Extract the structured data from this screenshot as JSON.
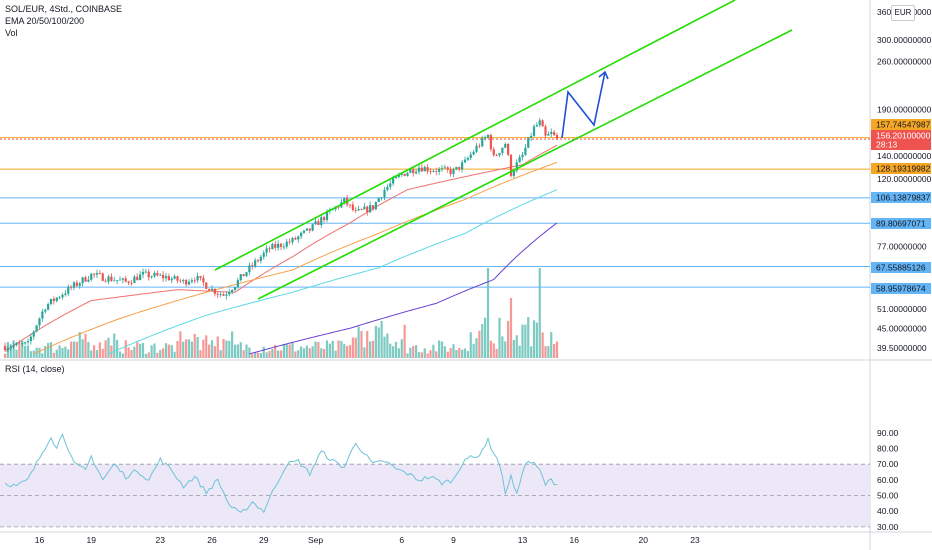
{
  "header": {
    "title": "SOL/EUR, 4Std., COINBASE",
    "indicators": "EMA 20/50/100/200",
    "volume_label": "Vol",
    "currency": "EUR",
    "rsi_label": "RSI (14, close)"
  },
  "colors": {
    "up": "#26a69a",
    "down": "#ef5350",
    "channel": "#22dd00",
    "arrow": "#1e4fd8",
    "ema20": "#f07070",
    "ema50": "#f5a04a",
    "ema100": "#5cd9e6",
    "ema200": "#6a3fd1",
    "rsi": "#6fc3d6",
    "rsi_band": "#ece8f8",
    "hline_blue": "#64b5f6",
    "hline_orange": "#f5a623"
  },
  "chart_data": {
    "type": "candlestick",
    "symbol": "SOL/EUR",
    "interval": "4Std.",
    "exchange": "COINBASE",
    "price_scale": "log",
    "price_range": [
      37,
      380
    ],
    "y_ticks": [
      "360.00000000",
      "300.00000000",
      "260.00000000",
      "190.00000000",
      "140.00000000",
      "120.00000000",
      "77.00000000",
      "51.00000000",
      "45.00000000",
      "39.50000000"
    ],
    "price_tags": [
      {
        "label": "157.74547987",
        "color": "#f5a623",
        "text": "#131722"
      },
      {
        "label": "156.20100000",
        "color": "#ef5350",
        "text": "#ffffff"
      },
      {
        "label": "28:13",
        "color": "#ef5350",
        "text": "#ffffff"
      },
      {
        "label": "128.19319982",
        "color": "#f5a623",
        "text": "#131722"
      },
      {
        "label": "106.13879837",
        "color": "#64b5f6",
        "text": "#131722"
      },
      {
        "label": "89.80697071",
        "color": "#64b5f6",
        "text": "#131722"
      },
      {
        "label": "67.55885126",
        "color": "#64b5f6",
        "text": "#131722"
      },
      {
        "label": "58.95978674",
        "color": "#64b5f6",
        "text": "#131722"
      }
    ],
    "horizontal_levels": [
      {
        "value": 157.75,
        "color": "#f5a623"
      },
      {
        "value": 156.2,
        "color": "#ef5350"
      },
      {
        "value": 128.19,
        "color": "#f5a623"
      },
      {
        "value": 106.14,
        "color": "#64b5f6"
      },
      {
        "value": 89.81,
        "color": "#64b5f6"
      },
      {
        "value": 67.56,
        "color": "#64b5f6"
      },
      {
        "value": 58.96,
        "color": "#64b5f6"
      }
    ],
    "x_labels": [
      "16",
      "19",
      "23",
      "26",
      "29",
      "Sep",
      "6",
      "9",
      "13",
      "16",
      "20",
      "23"
    ],
    "x_label_days": [
      16,
      19,
      23,
      26,
      29,
      32,
      37,
      40,
      44,
      47,
      51,
      54
    ],
    "start_day": 14,
    "bars_per_day": 6,
    "anchors": [
      [
        0,
        40
      ],
      [
        8,
        40.5
      ],
      [
        14,
        52
      ],
      [
        22,
        58
      ],
      [
        30,
        64
      ],
      [
        34,
        63
      ],
      [
        42,
        61
      ],
      [
        48,
        64
      ],
      [
        56,
        63
      ],
      [
        62,
        61
      ],
      [
        66,
        63
      ],
      [
        72,
        58
      ],
      [
        76,
        56
      ],
      [
        80,
        60
      ],
      [
        86,
        68
      ],
      [
        92,
        76
      ],
      [
        100,
        80
      ],
      [
        106,
        86
      ],
      [
        110,
        92
      ],
      [
        114,
        98
      ],
      [
        118,
        104
      ],
      [
        122,
        96
      ],
      [
        128,
        100
      ],
      [
        132,
        112
      ],
      [
        138,
        124
      ],
      [
        144,
        130
      ],
      [
        148,
        128
      ],
      [
        156,
        126
      ],
      [
        160,
        134
      ],
      [
        164,
        148
      ],
      [
        168,
        160
      ],
      [
        170,
        138
      ],
      [
        174,
        152
      ],
      [
        176,
        125
      ],
      [
        180,
        140
      ],
      [
        184,
        168
      ],
      [
        186,
        174
      ],
      [
        188,
        158
      ],
      [
        190,
        162
      ],
      [
        192,
        156
      ]
    ],
    "ema": {
      "EMA20": [
        [
          0,
          38.6
        ],
        [
          30,
          54
        ],
        [
          60,
          58
        ],
        [
          80,
          57
        ],
        [
          100,
          72
        ],
        [
          120,
          90
        ],
        [
          140,
          112
        ],
        [
          160,
          122
        ],
        [
          180,
          132
        ],
        [
          192,
          150
        ]
      ],
      "EMA50": [
        [
          10,
          38
        ],
        [
          40,
          48
        ],
        [
          70,
          57
        ],
        [
          100,
          66
        ],
        [
          130,
          84
        ],
        [
          160,
          105
        ],
        [
          192,
          134
        ]
      ],
      "EMA100": [
        [
          36,
          38
        ],
        [
          70,
          49
        ],
        [
          100,
          57
        ],
        [
          130,
          67
        ],
        [
          160,
          84
        ],
        [
          192,
          112
        ]
      ],
      "EMA200": [
        [
          85,
          38
        ],
        [
          120,
          45
        ],
        [
          150,
          53
        ],
        [
          170,
          62
        ],
        [
          192,
          90
        ]
      ]
    },
    "channel": {
      "upper": [
        [
          215,
          270
        ],
        [
          735,
          0
        ]
      ],
      "lower": [
        [
          258,
          299
        ],
        [
          792,
          30
        ]
      ]
    },
    "projection_arrow": [
      [
        562,
        138
      ],
      [
        568,
        92
      ],
      [
        594,
        125
      ],
      [
        605,
        72
      ]
    ],
    "rsi": {
      "y_ticks": [
        "90.00",
        "80.00",
        "70.00",
        "60.00",
        "50.00",
        "40.00",
        "30.00"
      ],
      "band": [
        30,
        70
      ],
      "midline": 50,
      "anchors": [
        [
          0,
          58
        ],
        [
          4,
          56
        ],
        [
          8,
          60
        ],
        [
          12,
          74
        ],
        [
          16,
          88
        ],
        [
          18,
          80
        ],
        [
          20,
          90
        ],
        [
          24,
          70
        ],
        [
          28,
          66
        ],
        [
          30,
          75
        ],
        [
          34,
          60
        ],
        [
          38,
          70
        ],
        [
          42,
          62
        ],
        [
          46,
          66
        ],
        [
          50,
          60
        ],
        [
          54,
          73
        ],
        [
          58,
          66
        ],
        [
          62,
          56
        ],
        [
          66,
          62
        ],
        [
          70,
          52
        ],
        [
          74,
          60
        ],
        [
          78,
          44
        ],
        [
          82,
          38
        ],
        [
          86,
          46
        ],
        [
          90,
          40
        ],
        [
          94,
          56
        ],
        [
          98,
          70
        ],
        [
          102,
          72
        ],
        [
          106,
          64
        ],
        [
          110,
          78
        ],
        [
          114,
          72
        ],
        [
          118,
          68
        ],
        [
          122,
          84
        ],
        [
          124,
          79
        ],
        [
          128,
          70
        ],
        [
          132,
          72
        ],
        [
          136,
          67
        ],
        [
          140,
          64
        ],
        [
          144,
          60
        ],
        [
          148,
          62
        ],
        [
          152,
          58
        ],
        [
          156,
          60
        ],
        [
          160,
          74
        ],
        [
          164,
          74
        ],
        [
          168,
          85
        ],
        [
          172,
          70
        ],
        [
          174,
          52
        ],
        [
          176,
          62
        ],
        [
          178,
          50
        ],
        [
          180,
          66
        ],
        [
          182,
          72
        ],
        [
          184,
          70
        ],
        [
          186,
          66
        ],
        [
          188,
          57
        ],
        [
          190,
          60
        ],
        [
          192,
          57
        ]
      ]
    }
  }
}
